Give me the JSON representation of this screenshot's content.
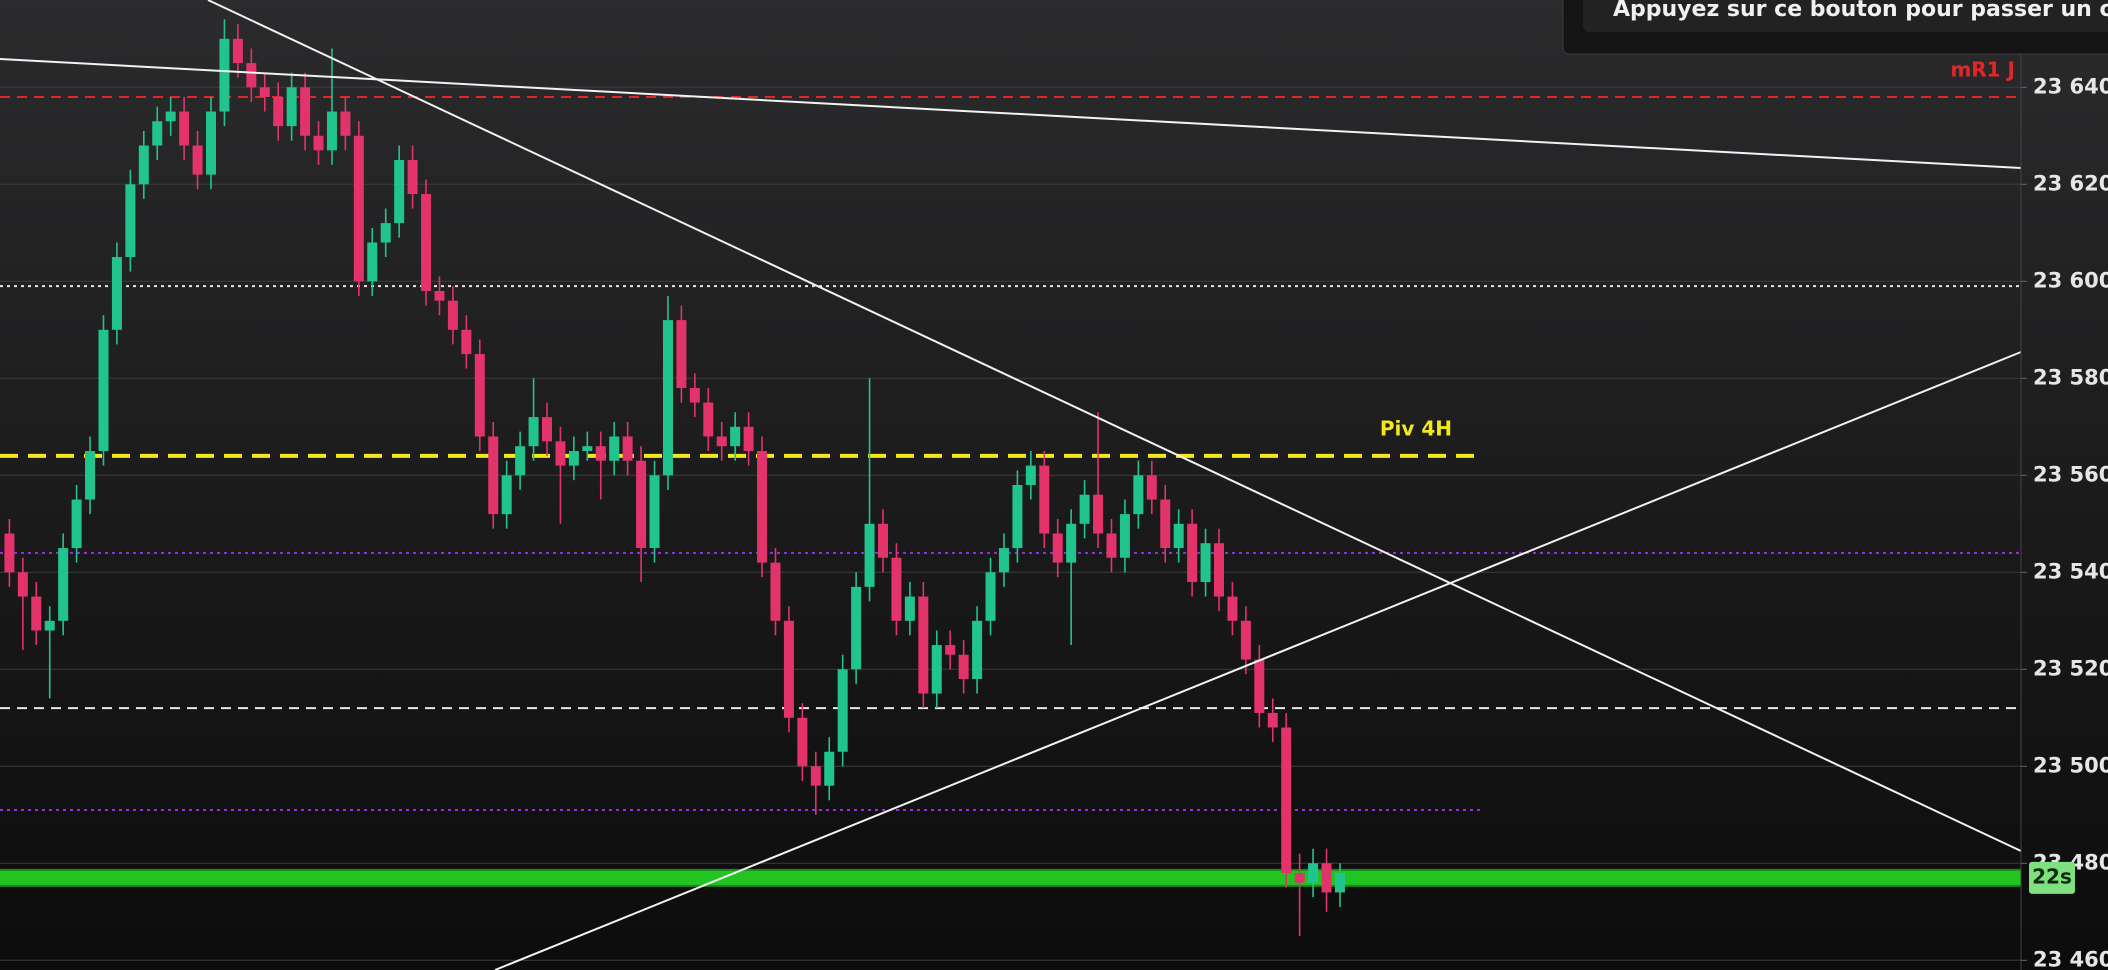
{
  "chart_data": {
    "type": "candlestick",
    "tooltip": "Appuyez sur ce bouton pour passer un ordre d'a",
    "countdown": "22s",
    "ylim": [
      23458,
      23658
    ],
    "yticks": [
      {
        "value": 23460,
        "label": "23 460"
      },
      {
        "value": 23480,
        "label": "23 480"
      },
      {
        "value": 23500,
        "label": "23 500"
      },
      {
        "value": 23520,
        "label": "23 520"
      },
      {
        "value": 23540,
        "label": "23 540"
      },
      {
        "value": 23560,
        "label": "23 560"
      },
      {
        "value": 23580,
        "label": "23 580"
      },
      {
        "value": 23600,
        "label": "23 600"
      },
      {
        "value": 23620,
        "label": "23 620"
      },
      {
        "value": 23640,
        "label": "23 640"
      }
    ],
    "grid": true,
    "up_color": "#22c48e",
    "down_color": "#e2336b",
    "levels": [
      {
        "label": "mR1 J",
        "value": 23638,
        "color": "#e02828",
        "style": "dashed"
      },
      {
        "value": 23599,
        "color": "#e8e8e8",
        "style": "dotted"
      },
      {
        "label": "Piv 4H",
        "value": 23564,
        "color": "#f2e81c",
        "style": "bold-dashed"
      },
      {
        "value": 23544,
        "color": "#9a2ee0",
        "style": "dotted"
      },
      {
        "value": 23512,
        "color": "#e8e8e8",
        "style": "dashed"
      },
      {
        "value": 23491,
        "color": "#9a2ee0",
        "style": "dotted"
      },
      {
        "value": 23477,
        "color": "#22c422",
        "style": "band"
      }
    ],
    "series": {
      "open": [
        23548,
        23540,
        23535,
        23528,
        23530,
        23545,
        23555,
        23565,
        23590,
        23605,
        23620,
        23628,
        23633,
        23635,
        23628,
        23622,
        23635,
        23650,
        23645,
        23640,
        23638,
        23632,
        23640,
        23630,
        23627,
        23635,
        23630,
        23600,
        23608,
        23612,
        23625,
        23618,
        23598,
        23596,
        23590,
        23585,
        23568,
        23552,
        23560,
        23566,
        23572,
        23567,
        23562,
        23565,
        23566,
        23563,
        23568,
        23563,
        23545,
        23560,
        23592,
        23578,
        23575,
        23568,
        23566,
        23570,
        23565,
        23542,
        23530,
        23510,
        23500,
        23496,
        23503,
        23520,
        23537,
        23550,
        23543,
        23530,
        23535,
        23515,
        23525,
        23523,
        23518,
        23530,
        23540,
        23545,
        23558,
        23562,
        23548,
        23542,
        23550,
        23556,
        23548,
        23543,
        23552,
        23560,
        23555,
        23545,
        23550,
        23538,
        23546,
        23535,
        23530,
        23522,
        23511,
        23508,
        23478,
        23476,
        23480,
        23474
      ],
      "high": [
        23551,
        23543,
        23538,
        23533,
        23548,
        23558,
        23568,
        23593,
        23608,
        23623,
        23631,
        23636,
        23638,
        23638,
        23631,
        23638,
        23654,
        23653,
        23648,
        23643,
        23641,
        23643,
        23643,
        23633,
        23648,
        23638,
        23633,
        23611,
        23615,
        23628,
        23628,
        23621,
        23601,
        23599,
        23593,
        23588,
        23571,
        23563,
        23569,
        23580,
        23575,
        23570,
        23568,
        23569,
        23569,
        23571,
        23571,
        23566,
        23563,
        23597,
        23595,
        23581,
        23578,
        23571,
        23573,
        23573,
        23568,
        23545,
        23533,
        23513,
        23503,
        23506,
        23523,
        23540,
        23580,
        23553,
        23546,
        23538,
        23538,
        23528,
        23528,
        23526,
        23533,
        23543,
        23548,
        23561,
        23565,
        23565,
        23551,
        23553,
        23559,
        23573,
        23551,
        23555,
        23563,
        23563,
        23558,
        23553,
        23553,
        23549,
        23549,
        23538,
        23533,
        23525,
        23514,
        23511,
        23482,
        23483,
        23483,
        23480
      ],
      "low": [
        23537,
        23524,
        23525,
        23514,
        23527,
        23542,
        23552,
        23562,
        23587,
        23602,
        23617,
        23625,
        23630,
        23625,
        23619,
        23619,
        23632,
        23642,
        23637,
        23635,
        23629,
        23629,
        23627,
        23624,
        23624,
        23627,
        23597,
        23597,
        23605,
        23609,
        23615,
        23595,
        23593,
        23587,
        23582,
        23565,
        23549,
        23549,
        23557,
        23563,
        23564,
        23550,
        23559,
        23563,
        23555,
        23560,
        23560,
        23538,
        23542,
        23557,
        23575,
        23572,
        23565,
        23563,
        23563,
        23562,
        23539,
        23527,
        23507,
        23497,
        23490,
        23493,
        23500,
        23517,
        23534,
        23540,
        23527,
        23527,
        23512,
        23512,
        23520,
        23515,
        23515,
        23527,
        23537,
        23542,
        23555,
        23545,
        23539,
        23525,
        23547,
        23545,
        23540,
        23540,
        23549,
        23552,
        23542,
        23542,
        23535,
        23535,
        23532,
        23527,
        23519,
        23508,
        23505,
        23475,
        23465,
        23473,
        23470,
        23471
      ],
      "close": [
        23540,
        23535,
        23528,
        23530,
        23545,
        23555,
        23565,
        23590,
        23605,
        23620,
        23628,
        23633,
        23635,
        23628,
        23622,
        23635,
        23650,
        23645,
        23640,
        23638,
        23632,
        23640,
        23630,
        23627,
        23635,
        23630,
        23600,
        23608,
        23612,
        23625,
        23618,
        23598,
        23596,
        23590,
        23585,
        23568,
        23552,
        23560,
        23566,
        23572,
        23567,
        23562,
        23565,
        23566,
        23563,
        23568,
        23563,
        23545,
        23560,
        23592,
        23578,
        23575,
        23568,
        23566,
        23570,
        23565,
        23542,
        23530,
        23510,
        23500,
        23496,
        23503,
        23520,
        23537,
        23550,
        23543,
        23530,
        23535,
        23515,
        23525,
        23523,
        23518,
        23530,
        23540,
        23545,
        23558,
        23562,
        23548,
        23542,
        23550,
        23556,
        23548,
        23543,
        23552,
        23560,
        23555,
        23545,
        23550,
        23538,
        23546,
        23535,
        23530,
        23522,
        23511,
        23508,
        23478,
        23476,
        23480,
        23474,
        23478
      ]
    }
  }
}
